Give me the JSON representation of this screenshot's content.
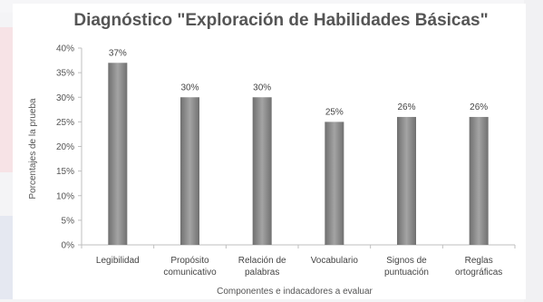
{
  "chart_data": {
    "type": "bar",
    "title": "Diagnóstico \"Exploración de Habilidades Básicas\"",
    "xlabel": "Componentes e indacadores a evaluar",
    "ylabel": "Porcentajes de la prueba",
    "categories": [
      [
        "Legibilidad"
      ],
      [
        "Propósito",
        "comunicativo"
      ],
      [
        "Relación de",
        "palabras"
      ],
      [
        "Vocabulario"
      ],
      [
        "Signos de",
        "puntuación"
      ],
      [
        "Reglas",
        "ortográficas"
      ]
    ],
    "values": [
      37,
      30,
      30,
      25,
      26,
      26
    ],
    "data_labels": [
      "37%",
      "30%",
      "30%",
      "25%",
      "26%",
      "26%"
    ],
    "yticks": [
      "0%",
      "5%",
      "10%",
      "15%",
      "20%",
      "25%",
      "30%",
      "35%",
      "40%"
    ],
    "ylim": [
      0,
      40
    ],
    "grid": false,
    "legend": "none",
    "bar_color": "#8a8a8a"
  }
}
